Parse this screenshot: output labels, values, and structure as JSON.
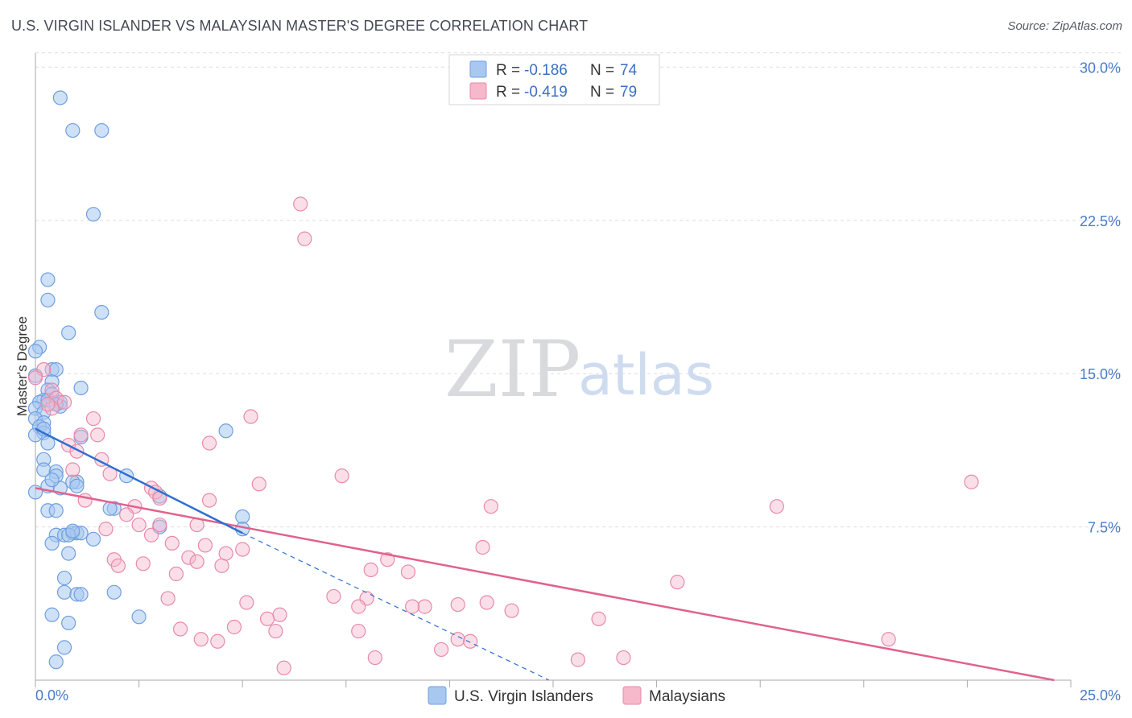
{
  "chart_data": {
    "type": "scatter",
    "title": "U.S. VIRGIN ISLANDER VS MALAYSIAN MASTER'S DEGREE CORRELATION CHART",
    "source": "Source: ZipAtlas.com",
    "xlabel": "",
    "ylabel": "Master's Degree",
    "xlim": [
      0,
      25
    ],
    "ylim": [
      0,
      31
    ],
    "x_tick_labels": [
      "0.0%",
      "25.0%"
    ],
    "y_ticks": [
      7.5,
      15.0,
      22.5,
      30.0
    ],
    "y_tick_labels": [
      "7.5%",
      "15.0%",
      "22.5%",
      "30.0%"
    ],
    "watermark": {
      "zip": "ZIP",
      "atlas": "atlas"
    },
    "colors": {
      "blue_fill": "#a8c8f0",
      "blue_stroke": "#6f9fe0",
      "blue_line": "#2f6fd0",
      "pink_fill": "#f6b8cb",
      "pink_stroke": "#e88aa8",
      "pink_line": "#e0628e",
      "grid": "#dddddd"
    },
    "legend": {
      "r_label": "R =",
      "n_label": "N =",
      "items": [
        {
          "r": "-0.186",
          "n": "74"
        },
        {
          "r": "-0.419",
          "n": "79"
        }
      ]
    },
    "series": [
      {
        "name": "U.S. Virgin Islanders",
        "trend": {
          "x": [
            0.0,
            5.0
          ],
          "y": [
            12.3,
            7.2
          ]
        },
        "trend_ext": {
          "x": [
            5.0,
            12.4
          ],
          "y": [
            7.2,
            0.0
          ]
        },
        "points": [
          [
            0.6,
            28.5
          ],
          [
            0.9,
            26.9
          ],
          [
            1.6,
            26.9
          ],
          [
            1.4,
            22.8
          ],
          [
            0.3,
            19.6
          ],
          [
            0.3,
            18.6
          ],
          [
            1.6,
            18.0
          ],
          [
            0.8,
            17.0
          ],
          [
            0.1,
            16.3
          ],
          [
            0.0,
            16.1
          ],
          [
            0.4,
            15.2
          ],
          [
            0.5,
            15.2
          ],
          [
            0.0,
            14.9
          ],
          [
            0.4,
            14.6
          ],
          [
            1.1,
            14.3
          ],
          [
            0.3,
            14.2
          ],
          [
            0.4,
            14.0
          ],
          [
            0.2,
            13.7
          ],
          [
            0.1,
            13.6
          ],
          [
            0.6,
            13.6
          ],
          [
            0.6,
            13.4
          ],
          [
            0.0,
            13.3
          ],
          [
            0.2,
            13.1
          ],
          [
            0.0,
            12.8
          ],
          [
            0.2,
            12.6
          ],
          [
            0.1,
            12.4
          ],
          [
            0.2,
            12.1
          ],
          [
            0.0,
            12.0
          ],
          [
            1.1,
            11.9
          ],
          [
            4.6,
            12.2
          ],
          [
            0.3,
            11.6
          ],
          [
            0.2,
            10.8
          ],
          [
            0.2,
            10.3
          ],
          [
            0.5,
            10.2
          ],
          [
            0.5,
            10.0
          ],
          [
            2.2,
            10.0
          ],
          [
            1.0,
            9.7
          ],
          [
            0.9,
            9.7
          ],
          [
            0.3,
            9.5
          ],
          [
            0.6,
            9.4
          ],
          [
            1.0,
            9.5
          ],
          [
            0.0,
            9.2
          ],
          [
            3.0,
            9.0
          ],
          [
            0.3,
            8.3
          ],
          [
            0.5,
            8.3
          ],
          [
            1.9,
            8.4
          ],
          [
            5.0,
            8.0
          ],
          [
            3.0,
            7.5
          ],
          [
            5.0,
            7.4
          ],
          [
            0.5,
            7.1
          ],
          [
            0.7,
            7.1
          ],
          [
            0.9,
            7.2
          ],
          [
            1.0,
            7.2
          ],
          [
            1.1,
            7.2
          ],
          [
            0.8,
            7.1
          ],
          [
            1.4,
            6.9
          ],
          [
            0.4,
            6.7
          ],
          [
            0.8,
            6.2
          ],
          [
            0.7,
            5.0
          ],
          [
            0.7,
            4.3
          ],
          [
            1.0,
            4.2
          ],
          [
            1.1,
            4.2
          ],
          [
            1.9,
            4.3
          ],
          [
            0.4,
            3.2
          ],
          [
            2.5,
            3.1
          ],
          [
            0.8,
            2.8
          ],
          [
            0.7,
            1.6
          ],
          [
            0.5,
            0.9
          ],
          [
            0.3,
            13.7
          ],
          [
            0.5,
            13.5
          ],
          [
            0.2,
            12.3
          ],
          [
            0.9,
            7.3
          ],
          [
            1.8,
            8.4
          ],
          [
            0.4,
            9.8
          ]
        ]
      },
      {
        "name": "Malaysians",
        "trend": {
          "x": [
            0.0,
            24.6
          ],
          "y": [
            9.4,
            0.0
          ]
        },
        "points": [
          [
            6.4,
            23.3
          ],
          [
            6.5,
            21.6
          ],
          [
            0.2,
            15.2
          ],
          [
            0.4,
            14.2
          ],
          [
            0.5,
            13.8
          ],
          [
            0.4,
            13.3
          ],
          [
            0.3,
            13.5
          ],
          [
            0.7,
            13.6
          ],
          [
            1.4,
            12.8
          ],
          [
            5.2,
            12.9
          ],
          [
            1.5,
            12.0
          ],
          [
            1.1,
            12.0
          ],
          [
            4.2,
            11.6
          ],
          [
            0.8,
            11.5
          ],
          [
            1.0,
            11.2
          ],
          [
            1.6,
            10.8
          ],
          [
            0.9,
            10.3
          ],
          [
            1.8,
            10.1
          ],
          [
            7.4,
            10.0
          ],
          [
            22.6,
            9.7
          ],
          [
            5.4,
            9.6
          ],
          [
            2.8,
            9.4
          ],
          [
            2.9,
            9.2
          ],
          [
            3.0,
            8.9
          ],
          [
            1.2,
            8.8
          ],
          [
            2.4,
            8.5
          ],
          [
            4.2,
            8.8
          ],
          [
            11.0,
            8.5
          ],
          [
            17.9,
            8.5
          ],
          [
            2.2,
            8.1
          ],
          [
            3.0,
            7.6
          ],
          [
            2.5,
            7.6
          ],
          [
            3.9,
            7.6
          ],
          [
            1.7,
            7.4
          ],
          [
            2.8,
            7.1
          ],
          [
            3.3,
            6.7
          ],
          [
            4.1,
            6.6
          ],
          [
            10.8,
            6.5
          ],
          [
            5.0,
            6.4
          ],
          [
            4.6,
            6.2
          ],
          [
            3.7,
            6.0
          ],
          [
            3.9,
            5.8
          ],
          [
            1.9,
            5.9
          ],
          [
            2.0,
            5.6
          ],
          [
            8.5,
            5.9
          ],
          [
            2.6,
            5.7
          ],
          [
            4.5,
            5.6
          ],
          [
            8.1,
            5.4
          ],
          [
            9.0,
            5.3
          ],
          [
            3.4,
            5.2
          ],
          [
            15.5,
            4.8
          ],
          [
            3.2,
            4.0
          ],
          [
            7.2,
            4.1
          ],
          [
            8.0,
            4.0
          ],
          [
            5.1,
            3.8
          ],
          [
            7.8,
            3.6
          ],
          [
            10.9,
            3.8
          ],
          [
            10.2,
            3.7
          ],
          [
            9.4,
            3.6
          ],
          [
            9.1,
            3.6
          ],
          [
            11.5,
            3.4
          ],
          [
            5.9,
            3.2
          ],
          [
            5.6,
            3.0
          ],
          [
            13.6,
            3.0
          ],
          [
            3.5,
            2.5
          ],
          [
            7.8,
            2.4
          ],
          [
            4.8,
            2.6
          ],
          [
            5.8,
            2.4
          ],
          [
            4.0,
            2.0
          ],
          [
            4.4,
            1.9
          ],
          [
            10.2,
            2.0
          ],
          [
            10.5,
            1.9
          ],
          [
            20.6,
            2.0
          ],
          [
            9.8,
            1.5
          ],
          [
            8.2,
            1.1
          ],
          [
            13.1,
            1.0
          ],
          [
            14.2,
            1.1
          ],
          [
            6.0,
            0.6
          ],
          [
            0.0,
            14.8
          ]
        ]
      }
    ]
  }
}
